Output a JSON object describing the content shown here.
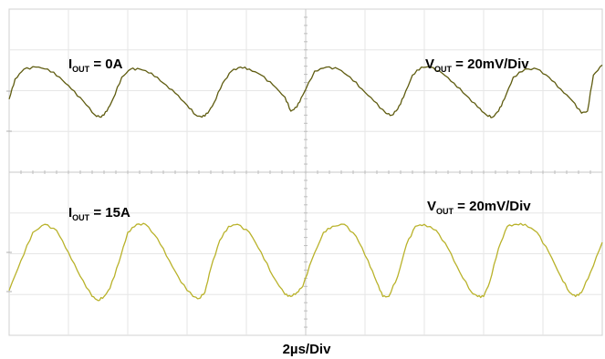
{
  "chart_data": [
    {
      "type": "line",
      "panel": "top",
      "label_left": {
        "main": "I",
        "sub": "OUT",
        "rest": " =  0A"
      },
      "label_right": {
        "main": "V",
        "sub": "OUT",
        "rest": " = 20mV/Div"
      },
      "x_unit": "µs",
      "y_unit": "mV",
      "xlim": [
        0,
        20
      ],
      "grid": true,
      "series": [
        {
          "color": "#5f5c10",
          "x": [
            0,
            0.2,
            0.5,
            0.9,
            1.3,
            1.7,
            2.1,
            2.5,
            2.9,
            3.1,
            3.3,
            3.5,
            3.8,
            4.1,
            4.4,
            4.8,
            5.2,
            5.6,
            6.0,
            6.3,
            6.5,
            6.7,
            6.9,
            7.2,
            7.5,
            7.8,
            8.1,
            8.5,
            8.9,
            9.3,
            9.5,
            9.7,
            9.9,
            10.3,
            10.7,
            11.1,
            11.5,
            11.9,
            12.3,
            12.7,
            12.9,
            13.1,
            13.3,
            13.6,
            13.9,
            14.2,
            14.6,
            15.0,
            15.4,
            15.8,
            16.1,
            16.3,
            16.5,
            16.7,
            17.0,
            17.4,
            17.8,
            18.2,
            18.6,
            19.0,
            19.3,
            19.5,
            19.7,
            20.0
          ],
          "y": [
            -4,
            6,
            11,
            12,
            11,
            7,
            1,
            -5,
            -12,
            -13,
            -10,
            -4,
            7,
            11,
            11,
            9,
            4,
            -1,
            -7,
            -12,
            -13,
            -11,
            -6,
            4,
            10,
            12,
            11,
            8,
            3,
            -3,
            -10,
            -8,
            -2,
            10,
            12,
            11,
            7,
            1,
            -5,
            -11,
            -12,
            -9,
            -3,
            8,
            12,
            12,
            9,
            4,
            -2,
            -8,
            -12,
            -13,
            -10,
            -4,
            7,
            11,
            11,
            7,
            1,
            -5,
            -11,
            -10,
            8,
            13
          ]
        }
      ]
    },
    {
      "type": "line",
      "panel": "bottom",
      "label_left": {
        "main": "I",
        "sub": "OUT",
        "rest": " = 15A"
      },
      "label_right": {
        "main": "V",
        "sub": "OUT",
        "rest": " = 20mV/Div"
      },
      "x_unit": "µs",
      "y_unit": "mV",
      "xlim": [
        0,
        20
      ],
      "grid": true,
      "series": [
        {
          "color": "#b9b22a",
          "x": [
            0,
            0.4,
            0.8,
            1.2,
            1.6,
            2.0,
            2.4,
            2.8,
            3.0,
            3.2,
            3.4,
            3.7,
            4.0,
            4.3,
            4.6,
            5.0,
            5.4,
            5.8,
            6.2,
            6.4,
            6.6,
            6.8,
            7.1,
            7.4,
            7.7,
            8.1,
            8.5,
            8.9,
            9.3,
            9.5,
            9.7,
            9.9,
            10.2,
            10.6,
            10.9,
            11.3,
            11.7,
            12.1,
            12.4,
            12.6,
            12.8,
            13.1,
            13.4,
            13.7,
            14.0,
            14.4,
            14.8,
            15.2,
            15.6,
            15.8,
            16.0,
            16.2,
            16.5,
            16.8,
            17.1,
            17.4,
            17.8,
            18.2,
            18.6,
            18.9,
            19.1,
            19.3,
            19.6,
            20.0
          ],
          "y": [
            -19,
            -4,
            10,
            14,
            11,
            0,
            -12,
            -22,
            -24,
            -22,
            -18,
            -5,
            10,
            14,
            14,
            7,
            -4,
            -15,
            -22,
            -23,
            -20,
            -8,
            6,
            13,
            14,
            10,
            0,
            -12,
            -21,
            -22,
            -20,
            -17,
            -4,
            10,
            13,
            14,
            8,
            -4,
            -15,
            -22,
            -22,
            -12,
            4,
            13,
            14,
            11,
            2,
            -10,
            -20,
            -22,
            -22,
            -15,
            2,
            13,
            14,
            14,
            10,
            0,
            -12,
            -20,
            -22,
            -20,
            -10,
            5
          ]
        }
      ]
    }
  ],
  "time_scale": "2µs/Div"
}
